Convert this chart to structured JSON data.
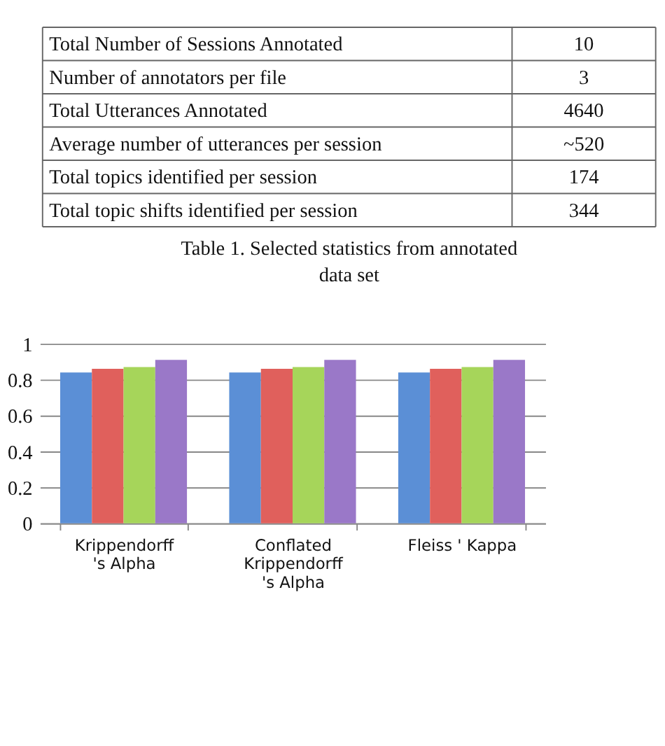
{
  "chart_data": [
    {
      "type": "other",
      "annotations": [
        "Total Number of Sessions Annotated",
        "10",
        "Number of annotators per file",
        "3",
        "Total Utterances Annotated",
        "4640",
        "Average number of utterances per session",
        "~520",
        "Total topics identified per session",
        "174",
        "Total topic shifts identified per session",
        "344",
        "Table 1. Selected statistics from annotated data set"
      ]
    },
    {
      "type": "bar",
      "categories": [
        "Krippendorff 's Alpha",
        "Conflated Krippendorff 's Alpha",
        "Fleiss ' Kappa"
      ],
      "series": [
        {
          "color": "#5b8fd6",
          "values": [
            0.84,
            0.84,
            0.84
          ]
        },
        {
          "color": "#e0605c",
          "values": [
            0.86,
            0.86,
            0.86
          ]
        },
        {
          "color": "#a6d55a",
          "values": [
            0.87,
            0.87,
            0.87
          ]
        },
        {
          "color": "#9a78c8",
          "values": [
            0.91,
            0.91,
            0.91
          ]
        }
      ],
      "ylim": [
        0,
        1
      ],
      "yticks": [
        0,
        0.2,
        0.4,
        0.6,
        0.8,
        1
      ],
      "grid": "y"
    }
  ]
}
